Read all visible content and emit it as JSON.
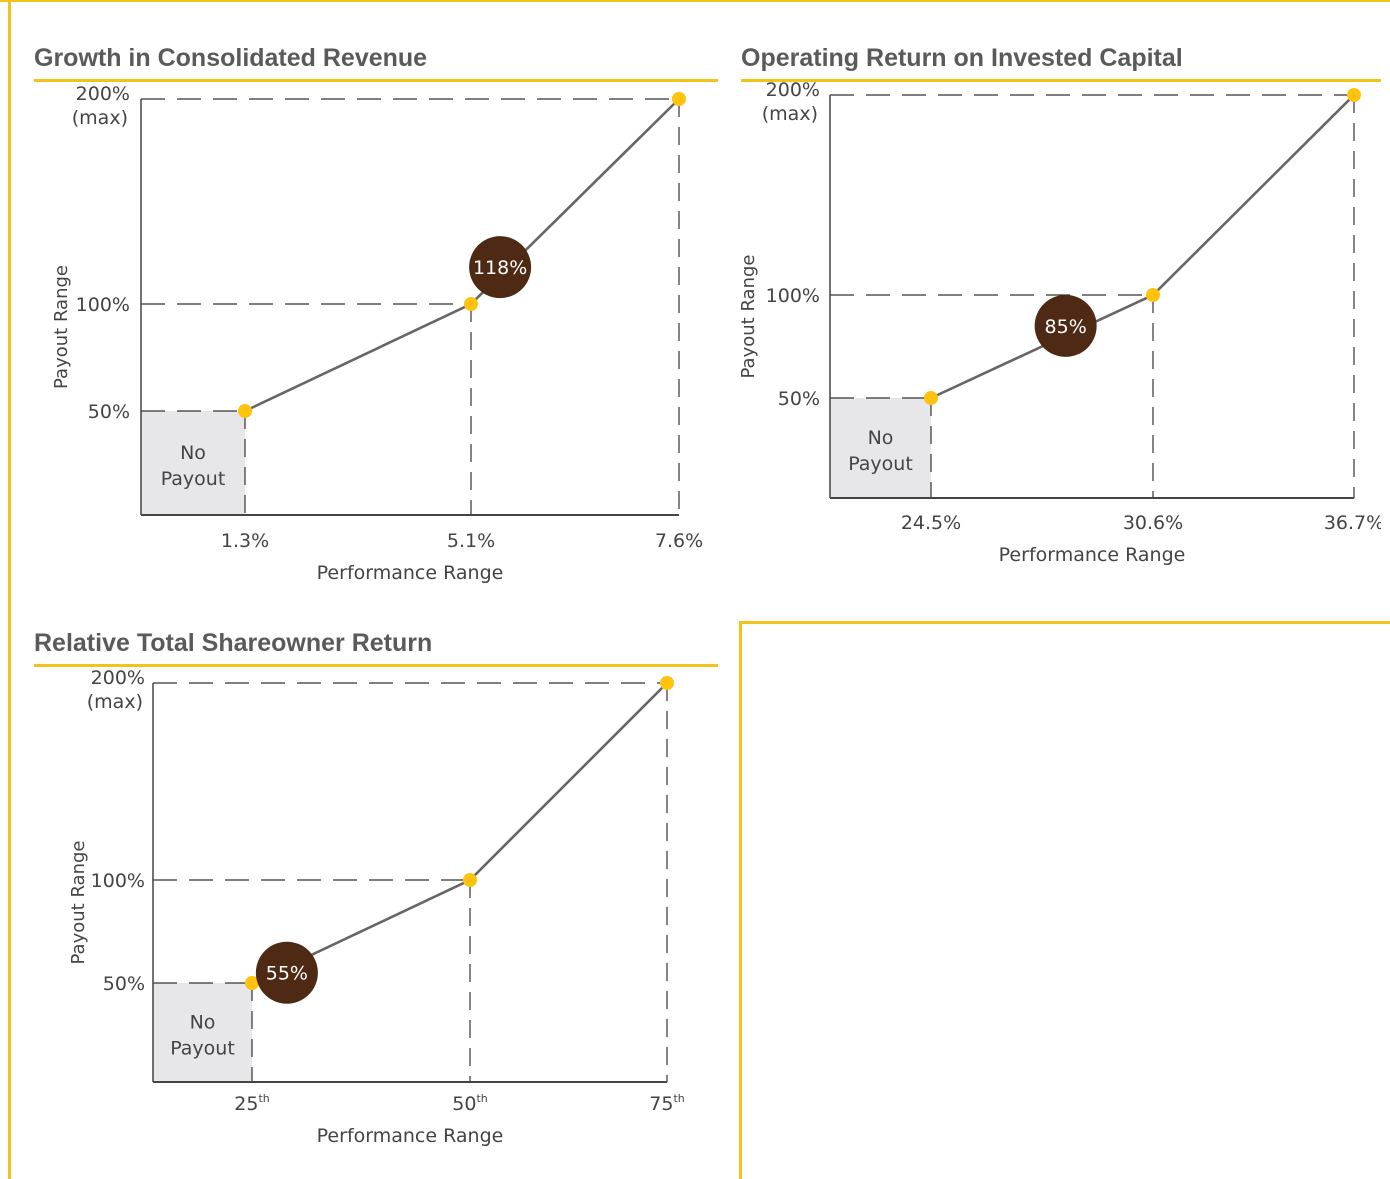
{
  "colors": {
    "frame": "#F2C318",
    "point": "#FFC20E",
    "line": "#666666",
    "marker": "#4E2A14",
    "no_payout_fill": "#E7E7E9",
    "title": "#5a5a5a"
  },
  "chart_data": [
    {
      "type": "line",
      "title": "Growth in Consolidated Revenue",
      "xlabel": "Performance Range",
      "ylabel": "Payout Range",
      "x_categories": [
        "1.3%",
        "5.1%",
        "7.6%"
      ],
      "x": [
        1.3,
        5.1,
        7.6
      ],
      "y": [
        50,
        100,
        200
      ],
      "y_ticks": [
        {
          "value": 50,
          "label": "50%"
        },
        {
          "value": 100,
          "label": "100%"
        },
        {
          "value": 200,
          "label": "200%",
          "sublabel": "(max)"
        }
      ],
      "no_payout_label": [
        "No",
        "Payout"
      ],
      "result_marker": {
        "x": 5.45,
        "y": 118,
        "label": "118%"
      },
      "x_superscript": ""
    },
    {
      "type": "line",
      "title": "Operating Return on Invested Capital",
      "xlabel": "Performance Range",
      "ylabel": "Payout Range",
      "x_categories": [
        "24.5%",
        "30.6%",
        "36.7%"
      ],
      "x": [
        24.5,
        30.6,
        36.7
      ],
      "y": [
        50,
        100,
        200
      ],
      "y_ticks": [
        {
          "value": 50,
          "label": "50%"
        },
        {
          "value": 100,
          "label": "100%"
        },
        {
          "value": 200,
          "label": "200%",
          "sublabel": "(max)"
        }
      ],
      "no_payout_label": [
        "No",
        "Payout"
      ],
      "result_marker": {
        "x": 28.2,
        "y": 85,
        "label": "85%"
      },
      "x_superscript": ""
    },
    {
      "type": "line",
      "title": "Relative Total Shareowner Return",
      "xlabel": "Performance Range",
      "ylabel": "Payout Range",
      "x_categories": [
        "25",
        "50",
        "75"
      ],
      "x": [
        25,
        50,
        75
      ],
      "y": [
        50,
        100,
        200
      ],
      "y_ticks": [
        {
          "value": 50,
          "label": "50%"
        },
        {
          "value": 100,
          "label": "100%"
        },
        {
          "value": 200,
          "label": "200%",
          "sublabel": "(max)"
        }
      ],
      "no_payout_label": [
        "No",
        "Payout"
      ],
      "result_marker": {
        "x": 29,
        "y": 55,
        "label": "55%"
      },
      "x_superscript": "th"
    }
  ]
}
